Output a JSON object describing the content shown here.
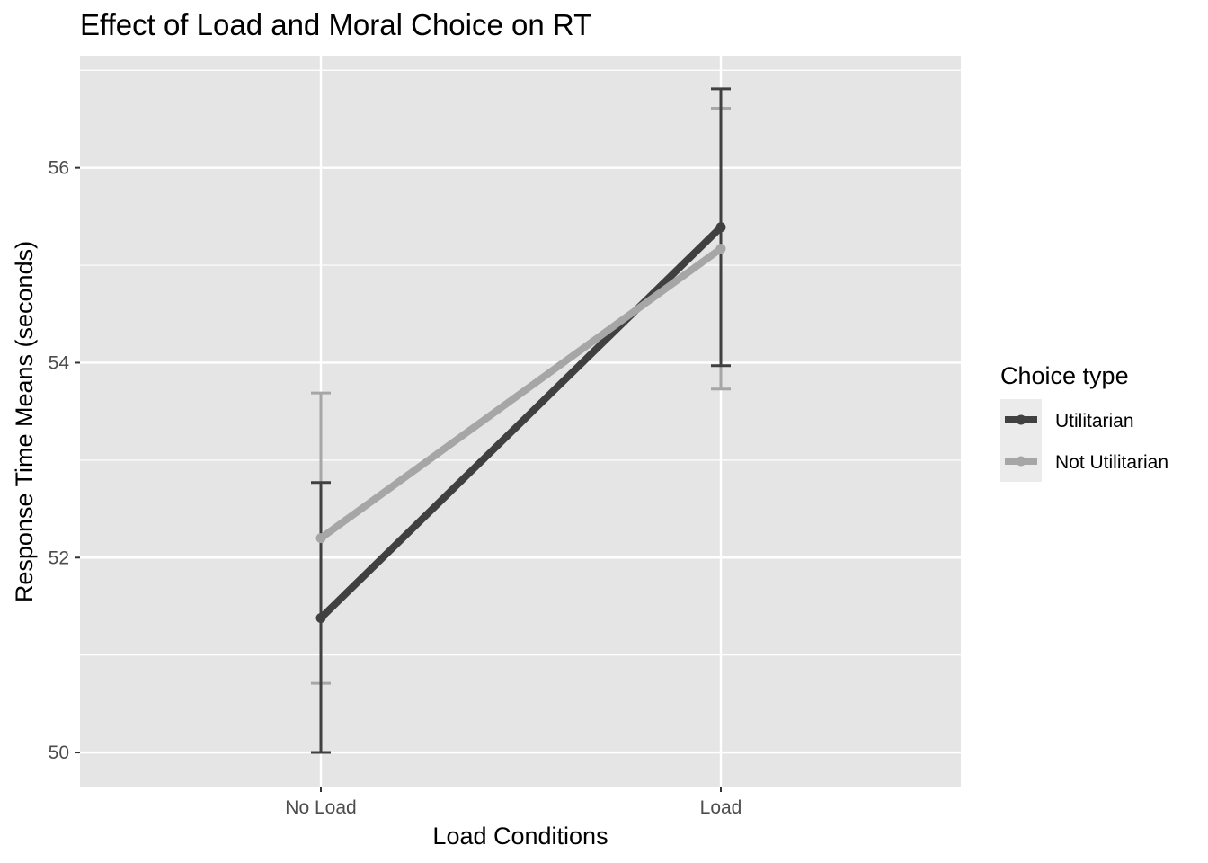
{
  "chart_data": {
    "type": "line",
    "title": "Effect of Load and Moral Choice on RT",
    "xlabel": "Load Conditions",
    "ylabel": "Response Time Means (seconds)",
    "categories": [
      "No Load",
      "Load"
    ],
    "ylim": [
      49.65,
      57.15
    ],
    "yticks": [
      50,
      52,
      54,
      56
    ],
    "ytick_labels": [
      "50",
      "52",
      "54",
      "56"
    ],
    "grid": true,
    "legend": {
      "title": "Choice type",
      "position": "right"
    },
    "series": [
      {
        "name": "Utilitarian",
        "color": "#404040",
        "values": [
          51.38,
          55.39
        ],
        "error_low": [
          50.0,
          53.97
        ],
        "error_high": [
          52.77,
          56.81
        ]
      },
      {
        "name": "Not Utilitarian",
        "color": "#a6a6a6",
        "values": [
          52.2,
          55.17
        ],
        "error_low": [
          50.71,
          53.73
        ],
        "error_high": [
          53.69,
          56.61
        ]
      }
    ]
  }
}
